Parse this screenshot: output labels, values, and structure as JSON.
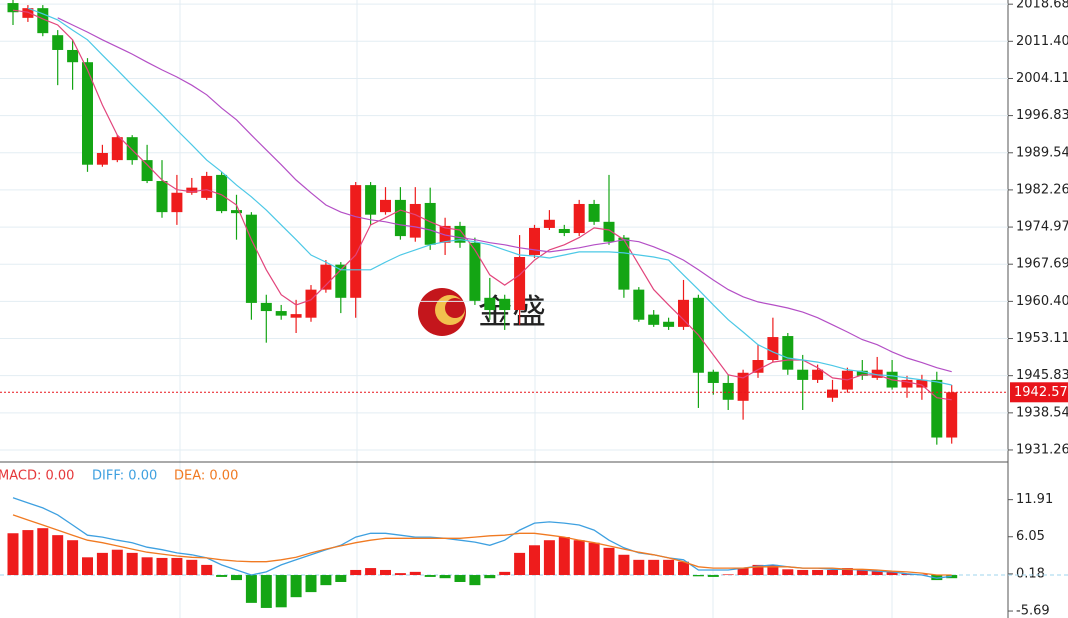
{
  "chart_data": [
    {
      "type": "candlestick",
      "up_color": "#ee1c1c",
      "down_color": "#14a514",
      "open": [
        2018.9,
        2016.0,
        2017.9,
        2012.6,
        2009.7,
        2007.3,
        1987.2,
        1988.1,
        1992.6,
        1988.1,
        1984.0,
        1977.9,
        1981.7,
        1980.7,
        1985.2,
        1978.3,
        1977.4,
        1960.1,
        1958.5,
        1957.2,
        1957.2,
        1962.7,
        1967.6,
        1961.1,
        1983.2,
        1977.9,
        1980.3,
        1972.9,
        1979.7,
        1971.9,
        1975.2,
        1971.9,
        1961.1,
        1960.9,
        1958.7,
        1969.5,
        1974.8,
        1974.6,
        1973.8,
        1979.5,
        1976.0,
        1972.9,
        1962.7,
        1957.8,
        1956.4,
        1955.4,
        1961.1,
        1946.6,
        1944.4,
        1940.9,
        1946.4,
        1948.9,
        1953.6,
        1947.0,
        1945.0,
        1941.5,
        1943.1,
        1946.8,
        1945.4,
        1946.6,
        1943.5,
        1943.5,
        1945.0,
        1933.7
      ],
      "high": [
        2019.5,
        2018.5,
        2018.5,
        2013.6,
        2011.7,
        2008.1,
        1991.1,
        1993.0,
        1993.0,
        1991.1,
        1988.1,
        1985.2,
        1984.6,
        1985.8,
        1985.8,
        1981.3,
        1977.9,
        1961.7,
        1959.7,
        1960.7,
        1963.6,
        1968.5,
        1968.1,
        1983.8,
        1983.8,
        1982.8,
        1982.8,
        1982.8,
        1982.7,
        1976.8,
        1976.0,
        1972.9,
        1965.0,
        1961.7,
        1973.4,
        1975.4,
        1978.3,
        1975.4,
        1980.3,
        1980.3,
        1985.2,
        1973.4,
        1963.2,
        1958.7,
        1957.2,
        1964.6,
        1961.7,
        1947.0,
        1946.0,
        1947.0,
        1951.9,
        1957.2,
        1954.2,
        1949.9,
        1948.0,
        1945.0,
        1947.4,
        1948.9,
        1949.5,
        1948.9,
        1945.8,
        1946.0,
        1946.6,
        1944.0
      ],
      "low": [
        2014.6,
        2015.2,
        2012.4,
        2002.8,
        2001.9,
        1985.8,
        1986.8,
        1987.7,
        1987.2,
        1983.6,
        1976.8,
        1975.4,
        1981.3,
        1980.3,
        1977.7,
        1972.5,
        1956.8,
        1952.3,
        1956.8,
        1954.2,
        1956.4,
        1962.1,
        1958.1,
        1957.2,
        1975.4,
        1977.4,
        1972.5,
        1972.1,
        1970.5,
        1969.5,
        1970.9,
        1959.7,
        1956.8,
        1954.8,
        1955.8,
        1968.9,
        1974.4,
        1973.2,
        1973.2,
        1975.4,
        1971.5,
        1961.1,
        1956.4,
        1955.4,
        1954.8,
        1954.8,
        1939.5,
        1942.1,
        1939.1,
        1937.2,
        1945.4,
        1948.5,
        1946.0,
        1939.1,
        1944.4,
        1940.7,
        1942.5,
        1945.0,
        1945.0,
        1943.1,
        1941.5,
        1941.1,
        1932.3,
        1932.5
      ],
      "close": [
        2017.1,
        2017.9,
        2013.0,
        2009.7,
        2007.3,
        1987.2,
        1989.5,
        1992.6,
        1988.1,
        1984.0,
        1977.9,
        1981.7,
        1982.7,
        1985.0,
        1978.1,
        1977.7,
        1960.1,
        1958.5,
        1957.6,
        1957.9,
        1962.7,
        1967.6,
        1961.1,
        1983.2,
        1977.4,
        1980.3,
        1973.2,
        1979.5,
        1971.5,
        1975.2,
        1971.9,
        1960.5,
        1958.7,
        1958.7,
        1969.1,
        1974.8,
        1976.4,
        1973.8,
        1979.5,
        1976.0,
        1972.1,
        1962.7,
        1956.8,
        1955.8,
        1955.4,
        1960.7,
        1946.4,
        1944.4,
        1941.1,
        1946.4,
        1948.9,
        1953.4,
        1947.0,
        1945.0,
        1947.0,
        1943.1,
        1946.8,
        1945.8,
        1947.0,
        1943.5,
        1945.0,
        1945.0,
        1933.7,
        1942.57
      ],
      "series": [
        {
          "color": "#e2457c",
          "values": [
            2017.5,
            2017.1,
            2015.8,
            2014.6,
            2011.7,
            2005.8,
            1998.9,
            1993.0,
            1990.1,
            1987.2,
            1984.2,
            1982.3,
            1981.9,
            1982.3,
            1981.3,
            1979.3,
            1972.5,
            1966.6,
            1961.7,
            1959.7,
            1960.7,
            1963.6,
            1966.6,
            1969.5,
            1975.4,
            1976.8,
            1978.3,
            1977.4,
            1976.0,
            1974.8,
            1974.4,
            1970.5,
            1965.6,
            1963.6,
            1965.6,
            1968.5,
            1970.5,
            1971.5,
            1972.9,
            1974.8,
            1974.4,
            1972.5,
            1967.6,
            1962.7,
            1959.7,
            1956.8,
            1953.8,
            1949.9,
            1946.0,
            1945.4,
            1947.0,
            1948.5,
            1948.9,
            1948.9,
            1947.4,
            1945.4,
            1945.0,
            1946.0,
            1946.0,
            1945.0,
            1944.6,
            1944.0,
            1941.5,
            1941.1
          ]
        },
        {
          "color": "#4cc8e6",
          "values": [
            null,
            2017.9,
            2016.8,
            2015.6,
            2013.6,
            2011.7,
            2008.7,
            2005.8,
            2002.8,
            1999.9,
            1997.0,
            1994.0,
            1991.1,
            1988.1,
            1985.8,
            1983.2,
            1980.9,
            1978.3,
            1975.4,
            1972.5,
            1969.5,
            1968.1,
            1966.6,
            1966.6,
            1966.6,
            1968.1,
            1969.5,
            1970.5,
            1971.5,
            1972.1,
            1972.5,
            1972.1,
            1971.5,
            1970.5,
            1969.5,
            1969.3,
            1968.9,
            1969.5,
            1970.1,
            1970.1,
            1970.1,
            1969.9,
            1969.5,
            1969.1,
            1968.5,
            1965.6,
            1962.7,
            1959.7,
            1956.8,
            1954.4,
            1951.9,
            1950.5,
            1949.3,
            1948.9,
            1948.5,
            1947.8,
            1947.0,
            1946.6,
            1946.0,
            1945.8,
            1945.4,
            1945.0,
            1944.6,
            1944.0
          ]
        },
        {
          "color": "#b44fc6",
          "values": [
            null,
            null,
            null,
            2016.0,
            2014.6,
            2013.2,
            2011.7,
            2010.3,
            2008.9,
            2007.3,
            2005.8,
            2004.4,
            2002.8,
            2000.9,
            1998.3,
            1996.0,
            1993.0,
            1990.1,
            1987.2,
            1984.2,
            1981.7,
            1979.3,
            1977.9,
            1977.0,
            1976.4,
            1976.0,
            1975.4,
            1975.0,
            1974.4,
            1973.4,
            1972.9,
            1972.5,
            1971.9,
            1971.5,
            1970.9,
            1970.5,
            1970.1,
            1970.5,
            1970.9,
            1971.5,
            1971.9,
            1972.5,
            1972.1,
            1971.1,
            1969.9,
            1968.5,
            1966.6,
            1964.6,
            1962.7,
            1961.3,
            1960.3,
            1959.7,
            1959.1,
            1958.3,
            1957.2,
            1955.8,
            1954.4,
            1952.9,
            1951.9,
            1950.5,
            1949.3,
            1948.4,
            1947.4,
            1946.6
          ]
        }
      ],
      "last_price": 1942.57,
      "last_price_color": "#e8141a",
      "ylim": [
        1928.9,
        2019.5
      ],
      "yticks": [
        2018.68,
        {
          "value": 2011.4,
          "label": "2011.40"
        },
        2004.11,
        1996.83,
        1989.54,
        1982.26,
        1974.97,
        1967.69,
        {
          "value": 1960.4,
          "label": "1960.40"
        },
        1953.11,
        1945.83,
        1938.54,
        1931.26
      ],
      "grid": true
    },
    {
      "type": "macd",
      "histogram": {
        "name": "MACD: 0.00",
        "color": "#e5383b",
        "up_color": "#ee1c1c",
        "down_color": "#14a514",
        "values": [
          6.6,
          7.1,
          7.4,
          6.3,
          5.5,
          2.8,
          3.5,
          4.0,
          3.5,
          2.8,
          2.7,
          2.7,
          2.4,
          1.6,
          -0.3,
          -0.8,
          -4.4,
          -5.2,
          -5.1,
          -3.5,
          -2.7,
          -1.6,
          -1.1,
          0.8,
          1.1,
          0.8,
          0.3,
          0.5,
          -0.3,
          -0.5,
          -1.1,
          -1.6,
          -0.5,
          0.5,
          3.5,
          4.7,
          5.5,
          6.0,
          5.5,
          5.1,
          4.3,
          3.2,
          2.4,
          2.4,
          2.4,
          2.1,
          -0.2,
          -0.3,
          0.1,
          1.1,
          1.6,
          1.6,
          0.9,
          0.8,
          0.8,
          0.8,
          1.1,
          0.9,
          0.6,
          0.5,
          0.2,
          0.1,
          -0.8,
          -0.5
        ]
      },
      "series": [
        {
          "name": "DIFF: 0.00",
          "color": "#3ea0e0",
          "values": [
            12.2,
            11.4,
            10.6,
            9.5,
            7.9,
            6.3,
            6.0,
            5.5,
            5.1,
            4.4,
            4.0,
            3.5,
            3.2,
            2.7,
            1.6,
            0.8,
            0.0,
            0.5,
            1.6,
            2.4,
            3.2,
            4.0,
            4.7,
            6.0,
            6.6,
            6.6,
            6.3,
            6.0,
            6.0,
            5.8,
            5.5,
            5.2,
            4.7,
            5.5,
            7.1,
            8.2,
            8.4,
            8.2,
            7.9,
            7.1,
            5.5,
            4.3,
            3.5,
            3.2,
            2.7,
            2.4,
            0.8,
            0.8,
            0.8,
            1.1,
            1.4,
            1.6,
            1.3,
            1.1,
            1.1,
            0.9,
            0.9,
            0.8,
            0.6,
            0.5,
            0.2,
            0.0,
            -0.5,
            -0.2
          ]
        },
        {
          "name": "DEA: 0.00",
          "color": "#f07a22",
          "values": [
            9.5,
            8.7,
            7.9,
            7.1,
            6.3,
            5.5,
            5.1,
            4.6,
            4.1,
            3.6,
            3.3,
            3.0,
            2.8,
            2.7,
            2.4,
            2.2,
            2.1,
            2.1,
            2.4,
            2.8,
            3.5,
            4.1,
            4.6,
            5.1,
            5.5,
            5.8,
            5.8,
            5.8,
            5.8,
            5.8,
            5.8,
            6.0,
            6.2,
            6.3,
            6.6,
            6.6,
            6.3,
            6.0,
            5.5,
            5.1,
            4.6,
            4.1,
            3.6,
            3.2,
            2.7,
            2.1,
            1.3,
            1.1,
            1.1,
            1.1,
            1.3,
            1.3,
            1.3,
            1.1,
            1.1,
            1.1,
            0.9,
            0.9,
            0.8,
            0.6,
            0.5,
            0.3,
            0.0,
            0.0
          ]
        }
      ],
      "ylim": [
        -6.79,
        17.7
      ],
      "yticks": [
        11.91,
        6.05,
        0.18,
        -5.69
      ],
      "grid": false
    }
  ],
  "watermark": "金盛"
}
